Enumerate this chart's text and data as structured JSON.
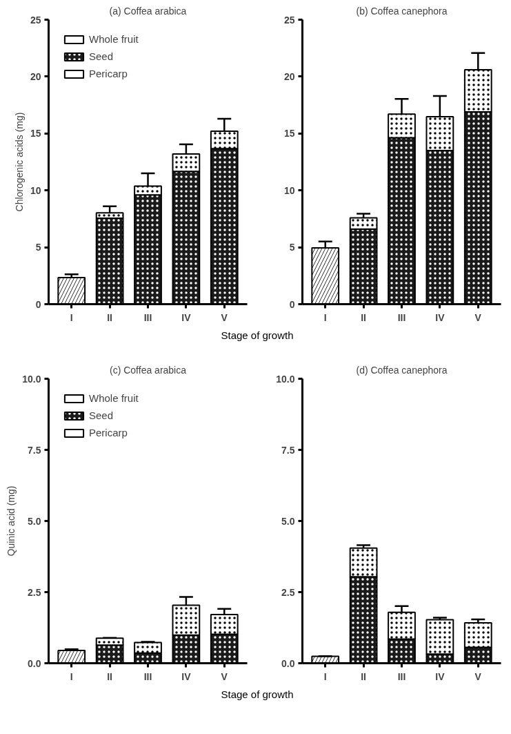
{
  "chart_data": [
    {
      "type": "bar",
      "title": "(a) Coffea arabica",
      "ylabel": "Chlorogenic acids (mg)",
      "xlabel": "Stage of growth",
      "categories": [
        "I",
        "II",
        "III",
        "IV",
        "V"
      ],
      "stacked": true,
      "ylim": [
        0,
        25
      ],
      "yticks": [
        0,
        5,
        10,
        15,
        20,
        25
      ],
      "grid": false,
      "legend": "top left",
      "series": [
        {
          "name": "Whole fruit",
          "color": "#ffffff",
          "values": [
            2.33,
            null,
            null,
            null,
            null
          ],
          "errors": [
            [
              2.33,
              2.63
            ],
            null,
            null,
            null,
            null
          ]
        },
        {
          "name": "Seed",
          "color": "#1a1a1a",
          "values": [
            null,
            7.56,
            9.6,
            11.66,
            13.67
          ]
        },
        {
          "name": "Pericarp",
          "color": "#ffffff",
          "values": [
            null,
            0.47,
            0.77,
            1.54,
            1.53
          ],
          "errors": [
            null,
            [
              8.03,
              8.6
            ],
            [
              10.37,
              11.5
            ],
            [
              13.2,
              14.04
            ],
            [
              15.2,
              16.3
            ]
          ]
        }
      ]
    },
    {
      "type": "bar",
      "title": "(b) Coffea canephora",
      "categories": [
        "I",
        "II",
        "III",
        "IV",
        "V"
      ],
      "stacked": true,
      "ylim": [
        0,
        25
      ],
      "yticks": [
        0,
        5,
        10,
        15,
        20,
        25
      ],
      "grid": false,
      "series": [
        {
          "color": "#ffffff",
          "values": [
            4.94,
            null,
            null,
            null,
            null
          ],
          "errors": [
            [
              4.94,
              5.5
            ],
            null,
            null,
            null,
            null
          ]
        },
        {
          "color": "#1a1a1a",
          "values": [
            null,
            6.6,
            14.63,
            13.5,
            16.9
          ]
        },
        {
          "color": "#ffffff",
          "values": [
            null,
            0.99,
            2.07,
            2.97,
            3.7
          ],
          "errors": [
            null,
            [
              7.59,
              7.95
            ],
            [
              16.7,
              18.04
            ],
            [
              16.47,
              18.3
            ],
            [
              20.6,
              22.07
            ]
          ]
        }
      ]
    },
    {
      "type": "bar",
      "title": "(c) Coffea arabica",
      "ylabel": "Quinic acid (mg)",
      "xlabel": "Stage of growth",
      "categories": [
        "I",
        "II",
        "III",
        "IV",
        "V"
      ],
      "stacked": true,
      "ylim": [
        0,
        10
      ],
      "yticks": [
        {
          "value": 0,
          "label": "0.0"
        },
        2.5,
        {
          "value": 5,
          "label": "5.0"
        },
        7.5,
        {
          "value": 10,
          "label": "10.0"
        }
      ],
      "grid": false,
      "legend": "top left",
      "series": [
        {
          "name": "Whole fruit",
          "color": "#ffffff",
          "values": [
            0.45,
            null,
            null,
            null,
            null
          ],
          "errors": [
            [
              0.45,
              0.49
            ],
            null,
            null,
            null,
            null
          ]
        },
        {
          "name": "Seed",
          "color": "#1a1a1a",
          "values": [
            null,
            0.64,
            0.36,
            0.99,
            1.02
          ]
        },
        {
          "name": "Pericarp",
          "color": "#ffffff",
          "values": [
            null,
            0.24,
            0.37,
            1.05,
            0.69
          ],
          "errors": [
            null,
            [
              0.88,
              0.89
            ],
            [
              0.73,
              0.75
            ],
            [
              2.04,
              2.33
            ],
            [
              1.71,
              1.91
            ]
          ]
        }
      ]
    },
    {
      "type": "bar",
      "title": "(d) Coffea canephora",
      "categories": [
        "I",
        "II",
        "III",
        "IV",
        "V"
      ],
      "stacked": true,
      "ylim": [
        0,
        10
      ],
      "yticks": [
        {
          "value": 0,
          "label": "0.0"
        },
        2.5,
        {
          "value": 5,
          "label": "5.0"
        },
        7.5,
        {
          "value": 10,
          "label": "10.0"
        }
      ],
      "grid": false,
      "series": [
        {
          "color": "#ffffff",
          "values": [
            0.24,
            null,
            null,
            null,
            null
          ],
          "errors": [
            [
              0.24,
              0.25
            ],
            null,
            null,
            null,
            null
          ]
        },
        {
          "color": "#1a1a1a",
          "values": [
            null,
            3.04,
            0.85,
            0.32,
            0.56
          ]
        },
        {
          "color": "#ffffff",
          "values": [
            null,
            1.01,
            0.94,
            1.21,
            0.86
          ],
          "errors": [
            null,
            [
              4.05,
              4.15
            ],
            [
              1.79,
              2.01
            ],
            [
              1.53,
              1.6
            ],
            [
              1.42,
              1.54
            ]
          ]
        }
      ]
    }
  ]
}
